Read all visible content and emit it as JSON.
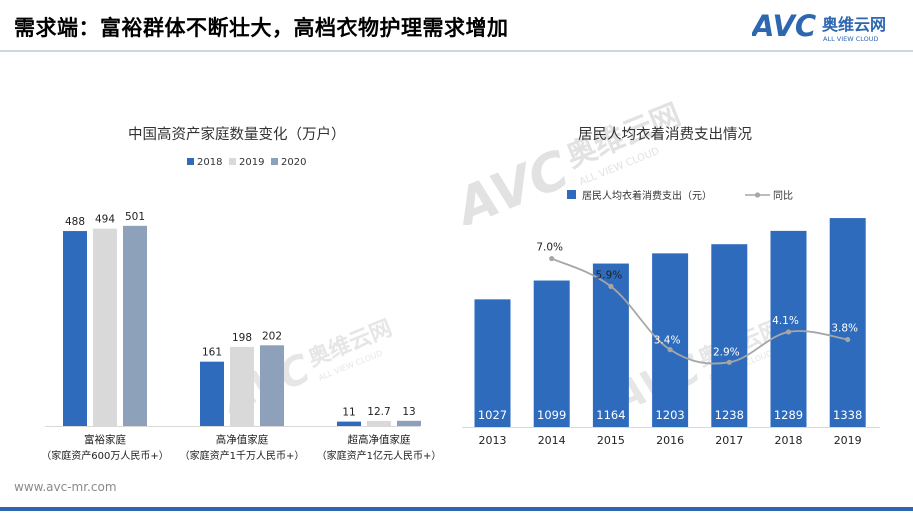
{
  "header": {
    "title": "需求端：富裕群体不断壮大，高档衣物护理需求增加",
    "logo_mark": "AVC",
    "logo_cn": "奥维云网",
    "logo_en": "ALL VIEW CLOUD"
  },
  "footer": {
    "url": "www.avc-mr.com"
  },
  "watermark": {
    "mark": "AVC",
    "cn": "奥维云网",
    "en": "ALL VIEW CLOUD"
  },
  "colors": {
    "s2018": "#2e6bbd",
    "s2019": "#d9d9d9",
    "s2020": "#8ea1bb",
    "bar_right": "#2e6bbd",
    "line": "#a6a6a6",
    "logo_blue": "#2e67b1"
  },
  "chart_data": [
    {
      "type": "bar",
      "title": "中国高资产家庭数量变化（万户）",
      "categories": [
        "富裕家庭",
        "高净值家庭",
        "超高净值家庭"
      ],
      "category_notes": [
        "（家庭资产600万人民币+）",
        "（家庭资产1千万人民币+）",
        "（家庭资产1亿元人民币+）"
      ],
      "series": [
        {
          "name": "2018",
          "values": [
            488,
            161,
            11
          ],
          "labels": [
            "488",
            "161",
            "11"
          ]
        },
        {
          "name": "2019",
          "values": [
            494,
            198,
            12.7
          ],
          "labels": [
            "494",
            "198",
            "12.7"
          ]
        },
        {
          "name": "2020",
          "values": [
            501,
            202,
            13
          ],
          "labels": [
            "501",
            "202",
            "13"
          ]
        }
      ],
      "legend": "top-left",
      "grid": false
    },
    {
      "type": "bar",
      "title": "居民人均衣着消费支出情况",
      "x": [
        "2013",
        "2014",
        "2015",
        "2016",
        "2017",
        "2018",
        "2019"
      ],
      "series": [
        {
          "name": "居民人均衣着消费支出（元）",
          "type": "bar",
          "values": [
            1027,
            1099,
            1164,
            1203,
            1238,
            1289,
            1338
          ]
        },
        {
          "name": "同比",
          "type": "line",
          "values": [
            null,
            7.0,
            5.9,
            3.4,
            2.9,
            4.1,
            3.8
          ],
          "labels": [
            "",
            "7.0%",
            "5.9%",
            "3.4%",
            "2.9%",
            "4.1%",
            "3.8%"
          ]
        }
      ],
      "legend": "top",
      "grid": false
    }
  ]
}
